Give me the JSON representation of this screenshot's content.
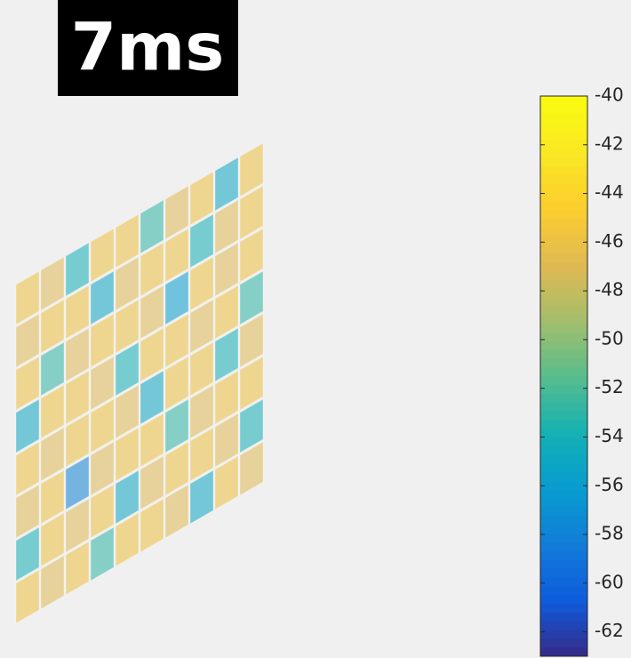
{
  "chart_data": {
    "type": "voxel",
    "title": "7ms",
    "colormap": "parula",
    "clim": [
      -63,
      -40
    ],
    "cticks": [
      -40,
      -42,
      -44,
      -46,
      -48,
      -50,
      -52,
      -54,
      -56,
      -58,
      -60,
      -62
    ],
    "values": [
      -46,
      -47,
      -54,
      -46,
      -46,
      -53,
      -47,
      -46,
      -55,
      -46,
      -47,
      -46,
      -46,
      -55,
      -47,
      -46,
      -46,
      -54,
      -47,
      -46,
      -46,
      -53,
      -47,
      -46,
      -46,
      -47,
      -56,
      -46,
      -47,
      -46,
      -55,
      -46,
      -46,
      -47,
      -54,
      -46,
      -46,
      -47,
      -46,
      -53,
      -46,
      -47,
      -46,
      -46,
      -47,
      -55,
      -46,
      -46,
      -54,
      -47,
      -47,
      -46,
      -58,
      -47,
      -46,
      -46,
      -53,
      -47,
      -46,
      -46,
      -54,
      -46,
      -47,
      -46,
      -55,
      -47,
      -46,
      -46,
      -47,
      -54,
      -46,
      -47,
      -46,
      -53,
      -46,
      -46,
      -47,
      -55,
      -46,
      -47
    ]
  }
}
